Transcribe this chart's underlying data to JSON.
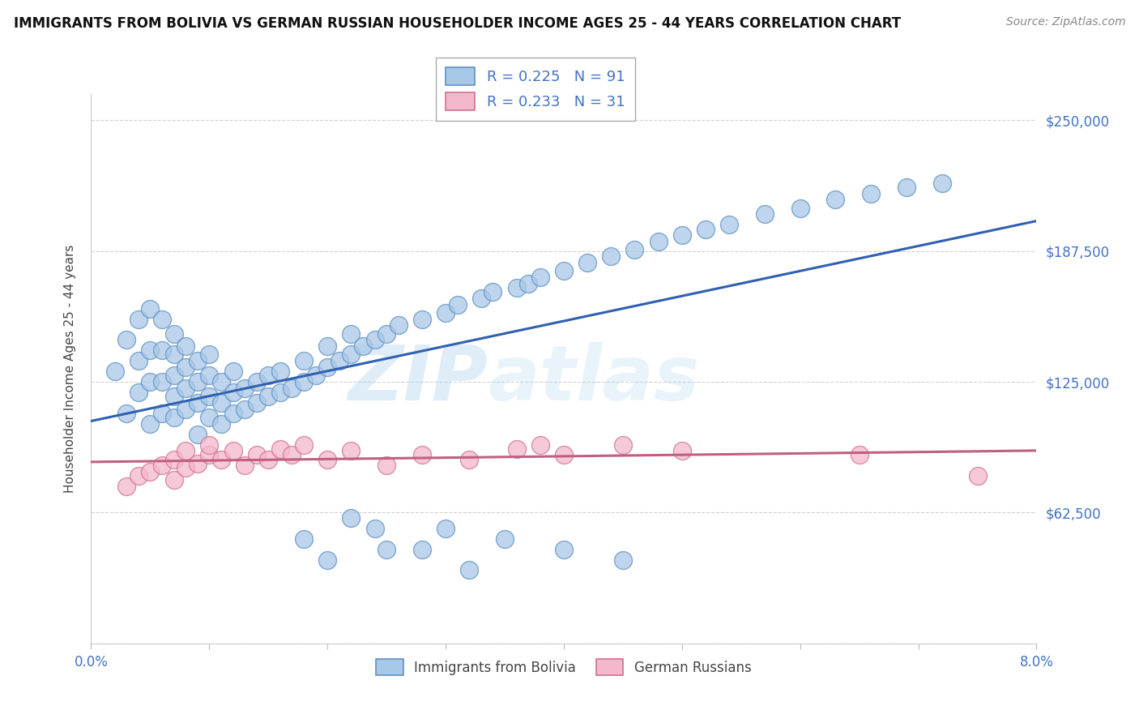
{
  "title": "IMMIGRANTS FROM BOLIVIA VS GERMAN RUSSIAN HOUSEHOLDER INCOME AGES 25 - 44 YEARS CORRELATION CHART",
  "source_text": "Source: ZipAtlas.com",
  "ylabel": "Householder Income Ages 25 - 44 years",
  "xlim": [
    0.0,
    0.08
  ],
  "ylim": [
    0,
    262500
  ],
  "ytick_vals": [
    0,
    62500,
    125000,
    187500,
    250000
  ],
  "ytick_labels": [
    "",
    "$62,500",
    "$125,000",
    "$187,500",
    "$250,000"
  ],
  "xtick_vals": [
    0.0,
    0.01,
    0.02,
    0.03,
    0.04,
    0.05,
    0.06,
    0.07,
    0.08
  ],
  "xtick_labels": [
    "0.0%",
    "",
    "",
    "",
    "",
    "",
    "",
    "",
    "8.0%"
  ],
  "bolivia_color": "#a8c8e8",
  "bolivia_edge": "#6090c0",
  "german_color": "#f4b8cc",
  "german_edge": "#d07090",
  "trend_blue": "#3060b0",
  "trend_pink": "#c06080",
  "bolivia_x": [
    0.002,
    0.003,
    0.003,
    0.004,
    0.004,
    0.004,
    0.005,
    0.005,
    0.005,
    0.005,
    0.006,
    0.006,
    0.006,
    0.006,
    0.007,
    0.007,
    0.007,
    0.007,
    0.007,
    0.008,
    0.008,
    0.008,
    0.008,
    0.009,
    0.009,
    0.009,
    0.009,
    0.01,
    0.01,
    0.01,
    0.01,
    0.011,
    0.011,
    0.011,
    0.012,
    0.012,
    0.012,
    0.013,
    0.013,
    0.014,
    0.014,
    0.015,
    0.015,
    0.016,
    0.016,
    0.017,
    0.018,
    0.018,
    0.019,
    0.02,
    0.02,
    0.021,
    0.022,
    0.022,
    0.023,
    0.024,
    0.025,
    0.026,
    0.028,
    0.03,
    0.031,
    0.033,
    0.034,
    0.036,
    0.037,
    0.038,
    0.04,
    0.042,
    0.044,
    0.046,
    0.048,
    0.05,
    0.052,
    0.054,
    0.057,
    0.06,
    0.063,
    0.066,
    0.069,
    0.072,
    0.024,
    0.028,
    0.032,
    0.018,
    0.02,
    0.022,
    0.025,
    0.03,
    0.035,
    0.04,
    0.045
  ],
  "bolivia_y": [
    130000,
    110000,
    145000,
    120000,
    135000,
    155000,
    105000,
    125000,
    140000,
    160000,
    110000,
    125000,
    140000,
    155000,
    108000,
    118000,
    128000,
    138000,
    148000,
    112000,
    122000,
    132000,
    142000,
    100000,
    115000,
    125000,
    135000,
    108000,
    118000,
    128000,
    138000,
    105000,
    115000,
    125000,
    110000,
    120000,
    130000,
    112000,
    122000,
    115000,
    125000,
    118000,
    128000,
    120000,
    130000,
    122000,
    125000,
    135000,
    128000,
    132000,
    142000,
    135000,
    138000,
    148000,
    142000,
    145000,
    148000,
    152000,
    155000,
    158000,
    162000,
    165000,
    168000,
    170000,
    172000,
    175000,
    178000,
    182000,
    185000,
    188000,
    192000,
    195000,
    198000,
    200000,
    205000,
    208000,
    212000,
    215000,
    218000,
    220000,
    55000,
    45000,
    35000,
    50000,
    40000,
    60000,
    45000,
    55000,
    50000,
    45000,
    40000
  ],
  "german_x": [
    0.003,
    0.004,
    0.005,
    0.006,
    0.007,
    0.007,
    0.008,
    0.008,
    0.009,
    0.01,
    0.01,
    0.011,
    0.012,
    0.013,
    0.014,
    0.015,
    0.016,
    0.017,
    0.018,
    0.02,
    0.022,
    0.025,
    0.028,
    0.032,
    0.036,
    0.038,
    0.04,
    0.045,
    0.05,
    0.065,
    0.075
  ],
  "german_y": [
    75000,
    80000,
    82000,
    85000,
    78000,
    88000,
    84000,
    92000,
    86000,
    90000,
    95000,
    88000,
    92000,
    85000,
    90000,
    88000,
    93000,
    90000,
    95000,
    88000,
    92000,
    85000,
    90000,
    88000,
    93000,
    95000,
    90000,
    95000,
    92000,
    90000,
    80000
  ]
}
